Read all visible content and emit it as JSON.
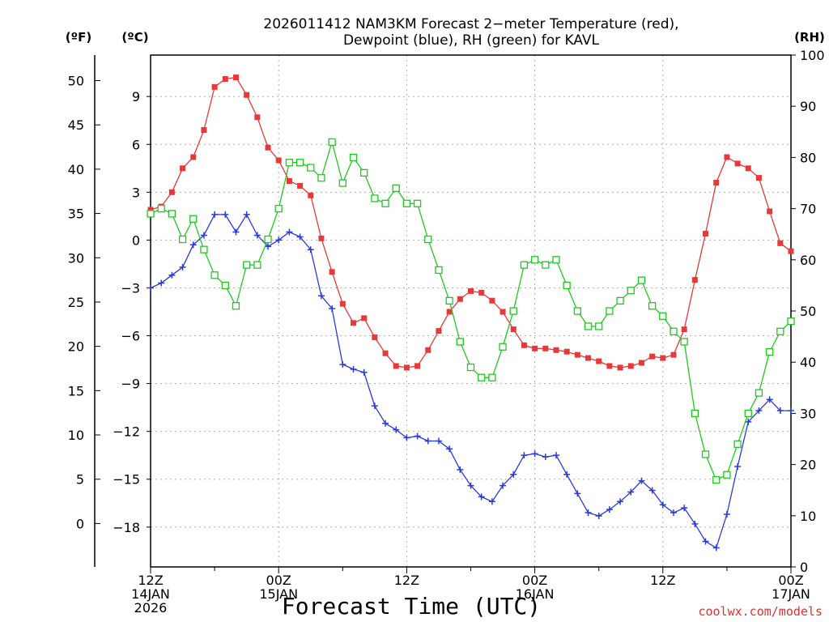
{
  "chart_data": {
    "type": "line",
    "title_line1": "2026011412 NAM3KM Forecast 2−meter Temperature (red),",
    "title_line2": "Dewpoint (blue), RH (green) for KAVL",
    "xlabel": "Forecast Time (UTC)",
    "credit": "coolwx.com/models",
    "axis_units": {
      "fahrenheit": "(ºF)",
      "celsius": "(ºC)",
      "rh": "(RH)"
    },
    "xlim_hours": [
      0,
      60
    ],
    "x_ticks": [
      {
        "hour": 0,
        "line1": "12Z",
        "line2": "14JAN",
        "line3": "2026"
      },
      {
        "hour": 12,
        "line1": "00Z",
        "line2": "15JAN",
        "line3": ""
      },
      {
        "hour": 24,
        "line1": "12Z",
        "line2": "",
        "line3": ""
      },
      {
        "hour": 36,
        "line1": "00Z",
        "line2": "16JAN",
        "line3": ""
      },
      {
        "hour": 48,
        "line1": "12Z",
        "line2": "",
        "line3": ""
      },
      {
        "hour": 60,
        "line1": "00Z",
        "line2": "17JAN",
        "line3": ""
      }
    ],
    "celsius_axis": {
      "ylim": [
        -20.5,
        11.6
      ],
      "ticks": [
        9,
        6,
        3,
        0,
        -3,
        -6,
        -9,
        -12,
        -15,
        -18
      ],
      "tick_labels": [
        "9",
        "6",
        "3",
        "0",
        "−3",
        "−6",
        "−9",
        "−12",
        "−15",
        "−18"
      ]
    },
    "fahrenheit_axis": {
      "ticks": [
        50,
        45,
        40,
        35,
        30,
        25,
        20,
        15,
        10,
        5,
        0
      ]
    },
    "rh_axis": {
      "ylim": [
        0,
        100
      ],
      "ticks": [
        100,
        90,
        80,
        70,
        60,
        50,
        40,
        30,
        20,
        10,
        0
      ]
    },
    "series": [
      {
        "name": "2-meter Temperature",
        "unit": "C",
        "color": "#e83838",
        "marker": "filled-square",
        "x": [
          0,
          1,
          2,
          3,
          4,
          5,
          6,
          7,
          8,
          9,
          10,
          11,
          12,
          13,
          14,
          15,
          16,
          17,
          18,
          19,
          20,
          21,
          22,
          23,
          24,
          25,
          26,
          27,
          28,
          29,
          30,
          31,
          32,
          33,
          34,
          35,
          36,
          37,
          38,
          39,
          40,
          41,
          42,
          43,
          44,
          45,
          46,
          47,
          48,
          49,
          50,
          51,
          52,
          53,
          54,
          55,
          56,
          57,
          58,
          59,
          60
        ],
        "values": [
          1.9,
          2.1,
          3.0,
          4.5,
          5.2,
          6.9,
          9.6,
          10.1,
          10.2,
          9.1,
          7.7,
          5.8,
          5.0,
          3.7,
          3.4,
          2.8,
          0.1,
          -2.0,
          -4.0,
          -5.2,
          -4.9,
          -6.1,
          -7.1,
          -7.9,
          -8.0,
          -7.9,
          -6.9,
          -5.7,
          -4.5,
          -3.7,
          -3.2,
          -3.3,
          -3.8,
          -4.5,
          -5.6,
          -6.6,
          -6.8,
          -6.8,
          -6.9,
          -7.0,
          -7.2,
          -7.4,
          -7.6,
          -7.9,
          -8.0,
          -7.9,
          -7.7,
          -7.3,
          -7.4,
          -7.2,
          -5.6,
          -2.5,
          0.4,
          3.6,
          5.2,
          4.8,
          4.5,
          3.9,
          1.8,
          -0.2,
          -0.7
        ]
      },
      {
        "name": "Dewpoint",
        "unit": "C",
        "color": "#2a3ad8",
        "marker": "plus",
        "x": [
          0,
          1,
          2,
          3,
          4,
          5,
          6,
          7,
          8,
          9,
          10,
          11,
          12,
          13,
          14,
          15,
          16,
          17,
          18,
          19,
          20,
          21,
          22,
          23,
          24,
          25,
          26,
          27,
          28,
          29,
          30,
          31,
          32,
          33,
          34,
          35,
          36,
          37,
          38,
          39,
          40,
          41,
          42,
          43,
          44,
          45,
          46,
          47,
          48,
          49,
          50,
          51,
          52,
          53,
          54,
          55,
          56,
          57,
          58,
          59,
          60
        ],
        "values": [
          -3.0,
          -2.7,
          -2.2,
          -1.7,
          -0.3,
          0.3,
          1.6,
          1.6,
          0.5,
          1.6,
          0.3,
          -0.4,
          0.0,
          0.5,
          0.2,
          -0.6,
          -3.5,
          -4.3,
          -7.8,
          -8.1,
          -8.3,
          -10.4,
          -11.5,
          -11.9,
          -12.4,
          -12.3,
          -12.6,
          -12.6,
          -13.1,
          -14.4,
          -15.4,
          -16.1,
          -16.4,
          -15.4,
          -14.7,
          -13.5,
          -13.4,
          -13.6,
          -13.5,
          -14.7,
          -15.9,
          -17.1,
          -17.3,
          -16.9,
          -16.4,
          -15.8,
          -15.1,
          -15.7,
          -16.6,
          -17.1,
          -16.8,
          -17.8,
          -18.9,
          -19.3,
          -17.2,
          -14.2,
          -11.4,
          -10.7,
          -10.0,
          -10.7,
          -10.7
        ]
      },
      {
        "name": "Relative Humidity",
        "unit": "%",
        "color": "#22c822",
        "marker": "hollow-square",
        "x": [
          0,
          1,
          2,
          3,
          4,
          5,
          6,
          7,
          8,
          9,
          10,
          11,
          12,
          13,
          14,
          15,
          16,
          17,
          18,
          19,
          20,
          21,
          22,
          23,
          24,
          25,
          26,
          27,
          28,
          29,
          30,
          31,
          32,
          33,
          34,
          35,
          36,
          37,
          38,
          39,
          40,
          41,
          42,
          43,
          44,
          45,
          46,
          47,
          48,
          49,
          50,
          51,
          52,
          53,
          54,
          55,
          56,
          57,
          58,
          59,
          60
        ],
        "values": [
          69,
          70,
          69,
          64,
          68,
          62,
          57,
          55,
          51,
          59,
          59,
          64,
          70,
          79,
          79,
          78,
          76,
          83,
          75,
          80,
          77,
          72,
          71,
          74,
          71,
          71,
          64,
          58,
          52,
          44,
          39,
          37,
          37,
          43,
          50,
          59,
          60,
          59,
          60,
          55,
          50,
          47,
          47,
          50,
          52,
          54,
          56,
          51,
          49,
          46,
          44,
          30,
          22,
          17,
          18,
          24,
          30,
          34,
          42,
          46,
          48
        ]
      }
    ]
  }
}
